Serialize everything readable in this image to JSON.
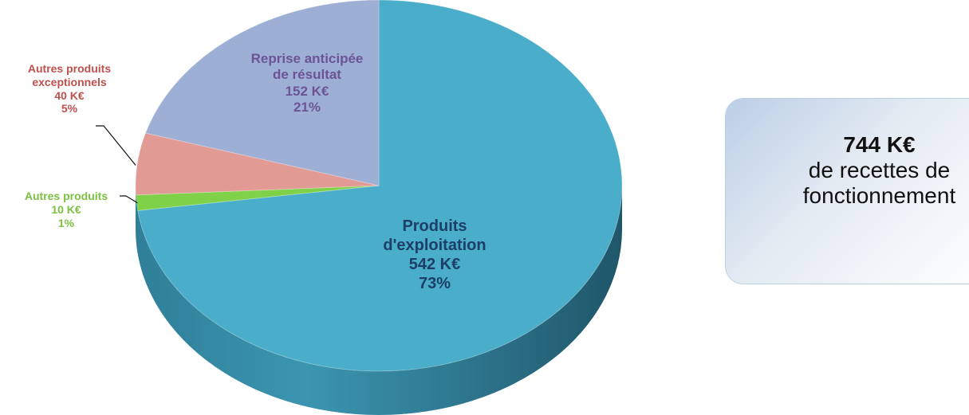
{
  "chart_data": {
    "type": "pie",
    "unit": "K€",
    "slices": [
      {
        "name": "Produits d'exploitation",
        "label_lines": [
          "Produits",
          "d'exploitation"
        ],
        "value": 542,
        "value_label": "542 K€",
        "percent_label": "73%",
        "color": "#4aadc9"
      },
      {
        "name": "Autres produits",
        "label_lines": [
          "Autres produits"
        ],
        "value": 10,
        "value_label": "10 K€",
        "percent_label": "1%",
        "color": "#7fd14a"
      },
      {
        "name": "Autres produits exceptionnels",
        "label_lines": [
          "Autres produits",
          "exceptionnels"
        ],
        "value": 40,
        "value_label": "40 K€",
        "percent_label": "5%",
        "color": "#e29a95"
      },
      {
        "name": "Reprise anticipée de résultat",
        "label_lines": [
          "Reprise anticipée",
          "de résultat"
        ],
        "value": 152,
        "value_label": "152 K€",
        "percent_label": "21%",
        "color": "#9eafd6"
      }
    ]
  },
  "summary": {
    "amount": "744 K€",
    "line1": "de recettes de",
    "line2": "fonctionnement"
  }
}
